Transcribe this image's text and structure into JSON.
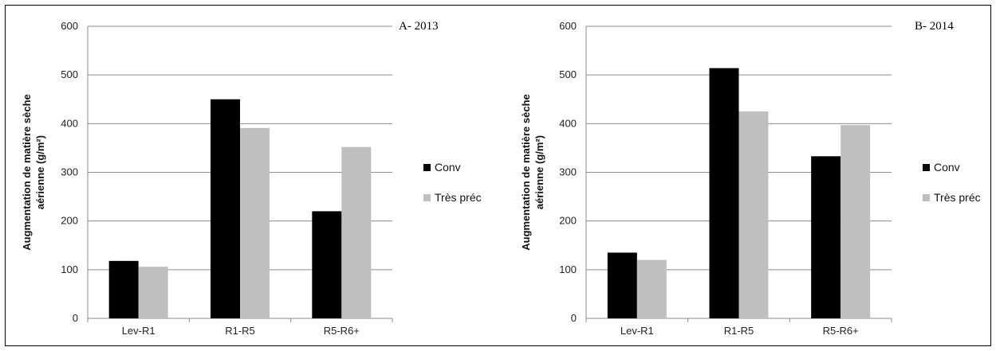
{
  "chart_data": [
    {
      "type": "bar",
      "title": "A- 2013",
      "ylabel": [
        "Augmentation de matière sèche",
        "aérienne (g/m²)"
      ],
      "categories": [
        "Lev-R1",
        "R1-R5",
        "R5-R6+"
      ],
      "ylim": [
        0,
        600
      ],
      "yticks": [
        "0",
        "100",
        "200",
        "300",
        "400",
        "500",
        "600"
      ],
      "grid": true,
      "legend_position": "right",
      "series": [
        {
          "name": "Conv",
          "color": "#000000",
          "values": [
            118,
            450,
            220
          ]
        },
        {
          "name": "Très préc",
          "color": "#bfbfbf",
          "values": [
            106,
            391,
            352
          ]
        }
      ]
    },
    {
      "type": "bar",
      "title": "B- 2014",
      "ylabel": [
        "Augmentation de matière sèche",
        "aérienne (g/m²)"
      ],
      "categories": [
        "Lev-R1",
        "R1-R5",
        "R5-R6+"
      ],
      "ylim": [
        0,
        600
      ],
      "yticks": [
        "0",
        "100",
        "200",
        "300",
        "400",
        "500",
        "600"
      ],
      "grid": true,
      "legend_position": "right",
      "series": [
        {
          "name": "Conv",
          "color": "#000000",
          "values": [
            135,
            514,
            333
          ]
        },
        {
          "name": "Très préc",
          "color": "#bfbfbf",
          "values": [
            120,
            425,
            397
          ]
        }
      ]
    }
  ]
}
